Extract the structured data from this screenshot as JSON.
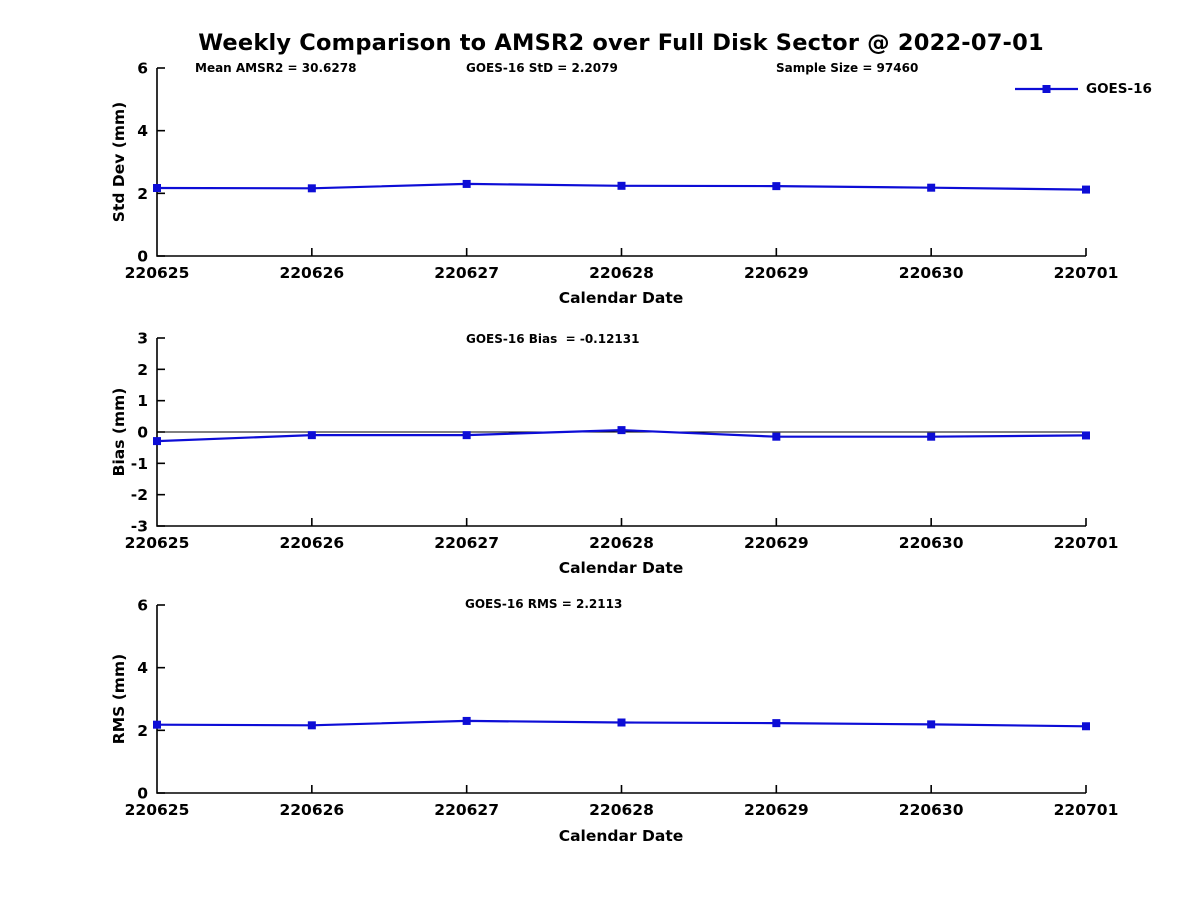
{
  "title": "Weekly Comparison to AMSR2 over Full Disk Sector @ 2022-07-01",
  "legend": {
    "label": "GOES-16"
  },
  "colors": {
    "line": "#0d0dd6",
    "axis": "#000000",
    "text": "#000000"
  },
  "chart_data": [
    {
      "type": "line",
      "name": "std-dev-vs-date",
      "ylabel": "Std Dev (mm)",
      "xlabel": "Calendar Date",
      "annotation_mean": "Mean AMSR2 = 30.6278",
      "annotation_std": "GOES-16 StD = 2.2079",
      "annotation_samples": "Sample Size = 97460",
      "categories": [
        "220625",
        "220626",
        "220627",
        "220628",
        "220629",
        "220630",
        "220701"
      ],
      "series": [
        {
          "name": "GOES-16",
          "values": [
            2.17,
            2.16,
            2.3,
            2.24,
            2.23,
            2.18,
            2.12
          ]
        }
      ],
      "ylim": [
        0,
        6
      ],
      "yticks": [
        0,
        2,
        4,
        6
      ],
      "grid": false,
      "legend_position": "top-right"
    },
    {
      "type": "line",
      "name": "bias-vs-date",
      "ylabel": "Bias (mm)",
      "xlabel": "Calendar Date",
      "annotation": "GOES-16 Bias  = -0.12131",
      "categories": [
        "220625",
        "220626",
        "220627",
        "220628",
        "220629",
        "220630",
        "220701"
      ],
      "series": [
        {
          "name": "GOES-16",
          "values": [
            -0.29,
            -0.1,
            -0.1,
            0.06,
            -0.15,
            -0.15,
            -0.11
          ]
        }
      ],
      "ylim": [
        -3,
        3
      ],
      "yticks": [
        -3,
        -2,
        -1,
        0,
        1,
        2,
        3
      ],
      "zero_line": true,
      "grid": false
    },
    {
      "type": "line",
      "name": "rms-vs-date",
      "ylabel": "RMS (mm)",
      "xlabel": "Calendar Date",
      "annotation": "GOES-16 RMS = 2.2113",
      "categories": [
        "220625",
        "220626",
        "220627",
        "220628",
        "220629",
        "220630",
        "220701"
      ],
      "series": [
        {
          "name": "GOES-16",
          "values": [
            2.18,
            2.16,
            2.3,
            2.25,
            2.23,
            2.19,
            2.13
          ]
        }
      ],
      "ylim": [
        0,
        6
      ],
      "yticks": [
        0,
        2,
        4,
        6
      ],
      "grid": false
    }
  ]
}
